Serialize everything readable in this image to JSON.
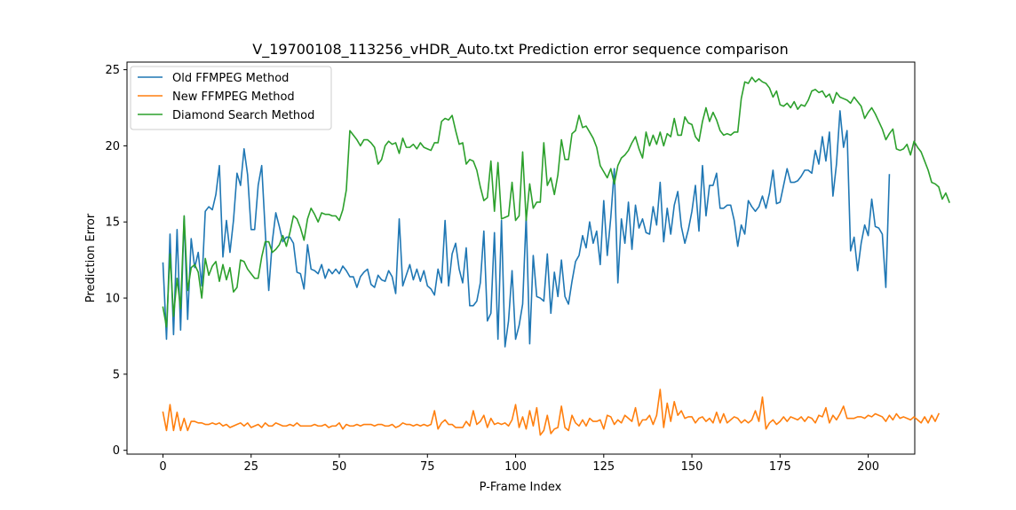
{
  "chart_data": {
    "type": "line",
    "title": "V_19700108_113256_vHDR_Auto.txt Prediction error sequence comparison",
    "xlabel": "P-Frame Index",
    "ylabel": "Prediction Error",
    "xlim": [
      -10.2,
      213.2
    ],
    "ylim": [
      -0.25,
      25.5
    ],
    "xticks": [
      0,
      25,
      50,
      75,
      100,
      125,
      150,
      175,
      200
    ],
    "yticks": [
      0,
      5,
      10,
      15,
      20,
      25
    ],
    "grid": false,
    "legend_position": "upper-left",
    "series": [
      {
        "name": "Old FFMPEG Method",
        "color": "#1f77b4",
        "values": [
          12.3,
          7.3,
          14.2,
          7.6,
          14.5,
          7.9,
          15.4,
          8.6,
          13.9,
          12.0,
          13.0,
          10.8,
          15.7,
          16.0,
          15.8,
          16.8,
          18.7,
          12.7,
          15.1,
          13.0,
          15.1,
          18.2,
          17.4,
          19.8,
          18.1,
          14.5,
          14.5,
          17.4,
          18.7,
          14.4,
          10.5,
          13.7,
          15.6,
          14.7,
          13.7,
          14.0,
          14.0,
          13.6,
          11.7,
          11.6,
          10.6,
          13.5,
          11.9,
          11.8,
          11.6,
          12.2,
          11.3,
          11.9,
          11.6,
          11.9,
          11.6,
          12.1,
          11.8,
          11.4,
          11.4,
          10.7,
          11.4,
          11.7,
          11.9,
          10.9,
          10.7,
          11.5,
          11.2,
          11.1,
          11.8,
          11.4,
          10.3,
          15.2,
          10.8,
          11.5,
          12.2,
          11.2,
          11.9,
          11.1,
          11.8,
          10.8,
          10.6,
          10.2,
          11.9,
          11.0,
          15.1,
          10.8,
          12.9,
          13.6,
          11.9,
          11.0,
          13.3,
          9.5,
          9.5,
          9.8,
          11.0,
          14.4,
          8.5,
          9.0,
          14.3,
          7.3,
          15.1,
          6.8,
          8.5,
          11.8,
          7.3,
          8.2,
          9.6,
          15.4,
          7.0,
          12.8,
          10.1,
          10.0,
          9.8,
          12.9,
          9.0,
          11.7,
          10.1,
          12.5,
          10.1,
          9.6,
          11.1,
          12.4,
          12.8,
          14.1,
          13.3,
          15.0,
          13.6,
          14.4,
          12.2,
          16.4,
          12.8,
          15.3,
          18.5,
          11.0,
          15.2,
          13.6,
          16.3,
          13.2,
          16.1,
          14.6,
          15.2,
          14.3,
          14.2,
          16.0,
          14.8,
          17.6,
          13.7,
          15.9,
          14.2,
          16.1,
          17.0,
          14.7,
          13.6,
          14.5,
          15.7,
          17.4,
          14.4,
          18.7,
          15.4,
          17.4,
          17.4,
          18.2,
          15.9,
          15.9,
          16.1,
          16.1,
          15.1,
          13.4,
          14.8,
          14.2,
          16.4,
          16.0,
          15.7,
          16.0,
          16.7,
          15.9,
          16.9,
          18.4,
          16.2,
          16.3,
          17.4,
          18.5,
          17.6,
          17.6,
          17.7,
          18.0,
          18.4,
          18.4,
          18.2,
          19.7,
          18.8,
          20.6,
          19.0,
          20.9,
          16.7,
          18.8,
          22.3,
          19.9,
          21.0,
          13.1,
          14.0,
          11.8,
          13.6,
          14.8,
          14.1,
          16.5,
          14.7,
          14.6,
          14.2,
          10.7,
          18.1
        ]
      },
      {
        "name": "New FFMPEG Method",
        "color": "#ff7f0e",
        "values": [
          2.5,
          1.3,
          3.0,
          1.3,
          2.5,
          1.3,
          2.1,
          1.3,
          1.9,
          1.9,
          1.8,
          1.8,
          1.7,
          1.7,
          1.8,
          1.7,
          1.8,
          1.6,
          1.7,
          1.5,
          1.6,
          1.7,
          1.8,
          1.6,
          1.8,
          1.5,
          1.6,
          1.7,
          1.5,
          1.8,
          1.6,
          1.6,
          1.8,
          1.7,
          1.6,
          1.6,
          1.7,
          1.6,
          1.8,
          1.6,
          1.6,
          1.6,
          1.6,
          1.7,
          1.6,
          1.6,
          1.7,
          1.5,
          1.6,
          1.6,
          1.8,
          1.4,
          1.7,
          1.6,
          1.6,
          1.7,
          1.6,
          1.7,
          1.7,
          1.7,
          1.6,
          1.7,
          1.7,
          1.6,
          1.6,
          1.7,
          1.5,
          1.6,
          1.8,
          1.7,
          1.7,
          1.6,
          1.7,
          1.6,
          1.7,
          1.6,
          1.7,
          2.6,
          1.4,
          1.8,
          2.0,
          1.7,
          1.7,
          1.5,
          1.5,
          1.5,
          1.9,
          1.6,
          2.6,
          1.7,
          1.9,
          2.3,
          1.5,
          2.1,
          1.7,
          1.8,
          1.7,
          1.8,
          1.6,
          2.0,
          3.0,
          1.5,
          2.2,
          1.4,
          2.6,
          1.6,
          2.8,
          1.0,
          1.3,
          2.3,
          1.1,
          1.4,
          1.5,
          2.9,
          1.5,
          1.3,
          2.3,
          1.8,
          1.6,
          2.0,
          1.6,
          2.1,
          1.9,
          1.9,
          2.0,
          1.4,
          2.3,
          2.2,
          1.7,
          2.0,
          1.8,
          2.3,
          2.1,
          1.9,
          2.8,
          1.6,
          2.0,
          2.0,
          2.3,
          1.7,
          2.3,
          4.0,
          1.5,
          3.1,
          1.9,
          3.2,
          2.3,
          2.6,
          2.1,
          2.2,
          2.2,
          1.8,
          2.1,
          2.2,
          1.9,
          2.1,
          1.8,
          2.5,
          1.8,
          2.4,
          1.8,
          2.0,
          2.2,
          2.1,
          1.8,
          2.0,
          1.8,
          2.0,
          2.6,
          1.9,
          3.5,
          1.4,
          1.8,
          2.0,
          1.7,
          1.9,
          2.2,
          1.9,
          2.2,
          2.1,
          2.0,
          2.2,
          1.9,
          2.2,
          2.1,
          1.8,
          2.3,
          2.2,
          2.8,
          1.8,
          2.3,
          2.0,
          2.4,
          2.9,
          2.1,
          2.1,
          2.1,
          2.2,
          2.2,
          2.1,
          2.3,
          2.2,
          2.4,
          2.3,
          2.2,
          1.9,
          2.3,
          2.0,
          2.4,
          2.1,
          2.2,
          2.1,
          2.0,
          2.2,
          2.0,
          1.8,
          2.2,
          1.8,
          2.3,
          1.9,
          2.4
        ]
      },
      {
        "name": "Diamond Search Method",
        "color": "#2ca02c",
        "values": [
          9.4,
          8.1,
          12.9,
          8.8,
          11.3,
          9.3,
          15.4,
          10.5,
          12.0,
          12.2,
          11.7,
          10.0,
          12.6,
          11.5,
          12.1,
          12.4,
          11.1,
          12.2,
          11.2,
          12.0,
          10.4,
          10.7,
          12.5,
          12.4,
          11.9,
          11.6,
          11.3,
          11.3,
          12.7,
          13.7,
          13.7,
          13.0,
          13.2,
          13.5,
          14.1,
          13.4,
          14.3,
          15.4,
          15.2,
          14.6,
          13.8,
          15.2,
          15.9,
          15.5,
          15.0,
          15.6,
          15.5,
          15.5,
          15.4,
          15.4,
          15.1,
          15.8,
          17.1,
          21.0,
          20.7,
          20.4,
          20.0,
          20.4,
          20.4,
          20.2,
          19.9,
          18.8,
          19.1,
          20.0,
          20.3,
          20.1,
          20.2,
          19.5,
          20.5,
          19.9,
          19.9,
          20.1,
          19.8,
          20.2,
          19.9,
          19.8,
          19.7,
          20.2,
          20.2,
          21.6,
          21.8,
          21.7,
          22.0,
          21.0,
          20.1,
          20.2,
          18.8,
          19.1,
          19.0,
          18.4,
          17.3,
          16.4,
          16.6,
          19.0,
          15.7,
          18.9,
          15.2,
          15.3,
          15.4,
          17.6,
          15.1,
          15.4,
          19.6,
          15.1,
          17.5,
          15.9,
          16.3,
          16.3,
          20.2,
          17.4,
          17.9,
          16.8,
          18.1,
          20.4,
          19.1,
          19.1,
          20.8,
          21.0,
          22.0,
          21.2,
          21.3,
          20.9,
          20.5,
          19.9,
          18.7,
          18.3,
          17.9,
          18.5,
          17.5,
          18.7,
          19.2,
          19.4,
          19.7,
          20.2,
          20.6,
          19.8,
          19.2,
          20.9,
          20.0,
          20.7,
          20.1,
          20.9,
          20.0,
          20.8,
          20.6,
          21.8,
          20.7,
          20.7,
          21.9,
          21.5,
          21.4,
          20.6,
          20.3,
          21.6,
          22.5,
          21.6,
          22.2,
          21.7,
          21.0,
          20.7,
          20.8,
          20.7,
          20.9,
          20.9,
          23.1,
          24.2,
          24.1,
          24.5,
          24.2,
          24.4,
          24.2,
          24.1,
          23.8,
          23.2,
          23.6,
          22.7,
          22.6,
          22.8,
          22.5,
          22.9,
          22.4,
          22.7,
          22.6,
          23.0,
          23.6,
          23.7,
          23.5,
          23.6,
          23.2,
          23.4,
          22.8,
          23.5,
          23.2,
          23.1,
          23.0,
          22.8,
          23.2,
          22.9,
          22.6,
          21.8,
          22.2,
          22.5,
          22.1,
          21.6,
          21.1,
          20.4,
          20.8,
          21.1,
          19.8,
          19.7,
          19.8,
          20.1,
          19.4,
          20.3,
          19.9,
          19.6,
          19.0,
          18.4,
          17.6,
          17.5,
          17.3,
          16.5,
          16.9,
          16.3
        ]
      }
    ]
  }
}
